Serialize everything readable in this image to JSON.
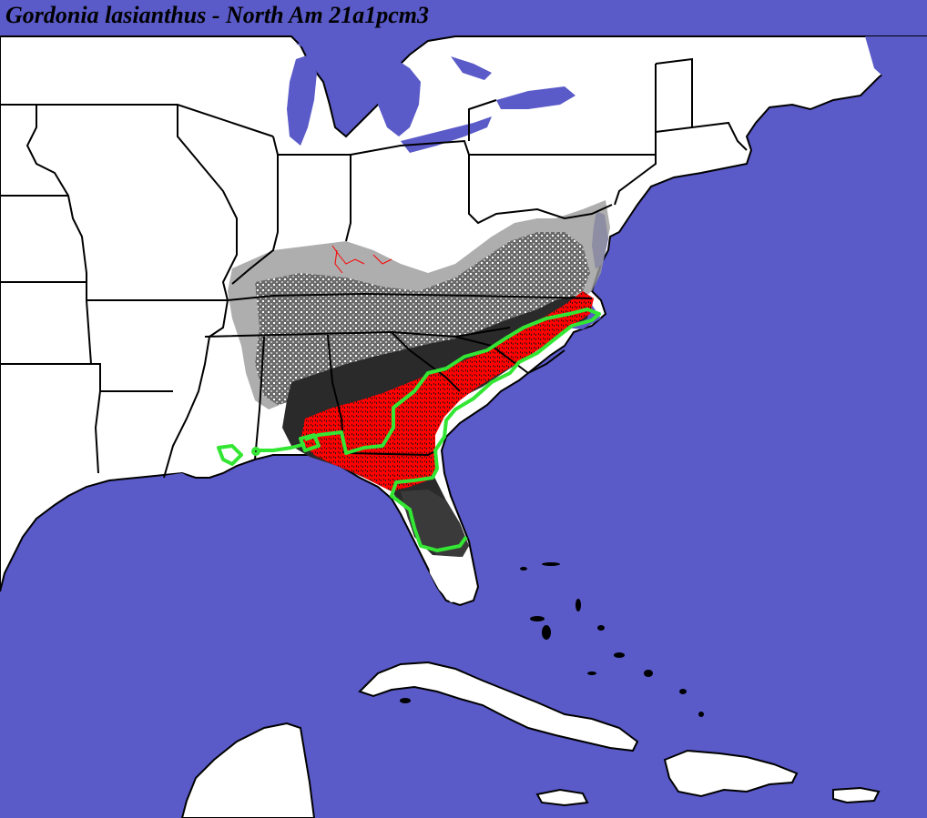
{
  "title": "Gordonia lasianthus - North Am 21a1pcm3",
  "colors": {
    "water": "#5a5ac8",
    "land": "#ffffff",
    "border": "#000000",
    "range_outline": "#33e633",
    "high_suitability": "#ff0000",
    "dark_suitability": "#2a2a2a",
    "mid_suitability": "#555555",
    "low_suitability": "#9a9a9a"
  }
}
